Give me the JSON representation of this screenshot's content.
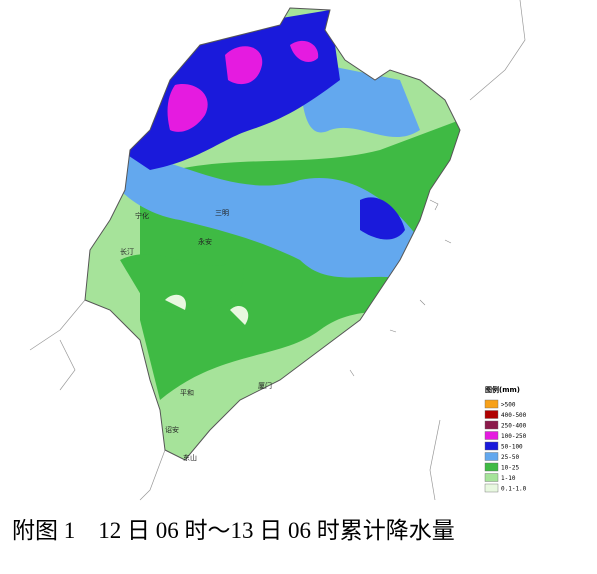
{
  "map": {
    "places": [
      "宁化",
      "永安",
      "三明",
      "长汀",
      "平和",
      "诏安",
      "东山",
      "厦门"
    ],
    "legend": {
      "title": "图例(mm)",
      "items": [
        {
          "label": ">500",
          "color": "#f7a11a"
        },
        {
          "label": "400-500",
          "color": "#b00000"
        },
        {
          "label": "250-400",
          "color": "#8b1a4a"
        },
        {
          "label": "100-250",
          "color": "#e51be0"
        },
        {
          "label": "50-100",
          "color": "#1a1adb"
        },
        {
          "label": "25-50",
          "color": "#63a8ee"
        },
        {
          "label": "10-25",
          "color": "#3fba44"
        },
        {
          "label": "1-10",
          "color": "#a6e39a"
        },
        {
          "label": "0.1-1.0",
          "color": "#e8f8e0"
        }
      ]
    },
    "caption": "附图 1　12 日 06 时～13 日 06 时累计降水量"
  }
}
